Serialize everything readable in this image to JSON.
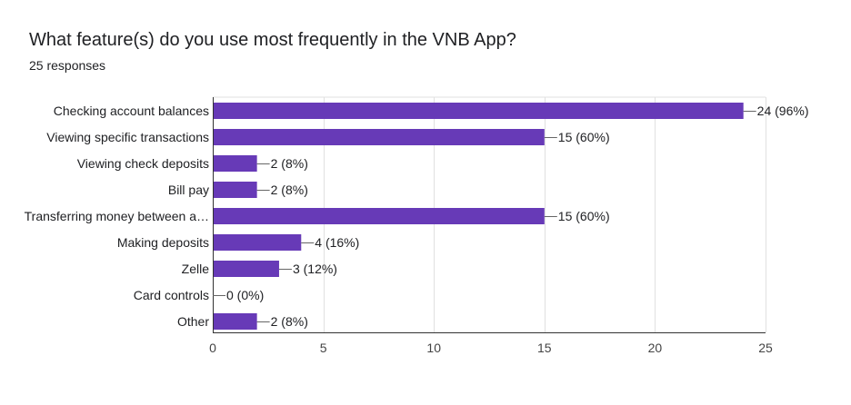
{
  "header": {
    "title": "What feature(s) do you use most frequently in the VNB App?",
    "responses": "25 responses"
  },
  "colors": {
    "bar": "#673ab7",
    "grid": "#e0e0e0",
    "axis": "#333333",
    "text": "#202124"
  },
  "chart_data": {
    "type": "bar",
    "orientation": "horizontal",
    "categories": [
      "Checking account balances",
      "Viewing specific transactions",
      "Viewing check deposits",
      "Bill pay",
      "Transferring money between a…",
      "Making deposits",
      "Zelle",
      "Card controls",
      "Other"
    ],
    "values": [
      24,
      15,
      2,
      2,
      15,
      4,
      3,
      0,
      2
    ],
    "data_labels": [
      "24 (96%)",
      "15 (60%)",
      "2 (8%)",
      "2 (8%)",
      "15 (60%)",
      "4 (16%)",
      "3 (12%)",
      "0 (0%)",
      "2 (8%)"
    ],
    "xlim": [
      0,
      25
    ],
    "xticks": [
      0,
      5,
      10,
      15,
      20,
      25
    ],
    "grid": true,
    "legend": "none"
  }
}
